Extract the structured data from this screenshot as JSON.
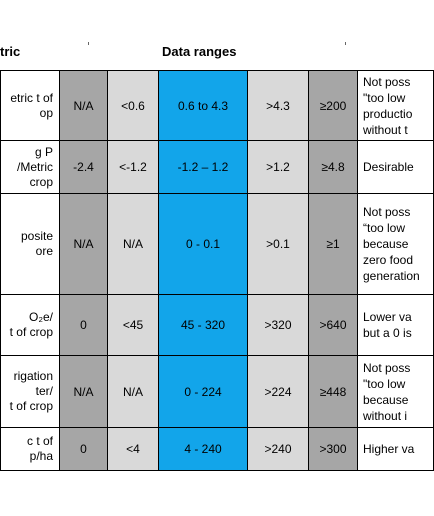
{
  "header": {
    "metric": "tric",
    "ranges": "Data ranges"
  },
  "rows": [
    {
      "metric": [
        "etric t of",
        "op"
      ],
      "values": [
        "N/A",
        "<0.6",
        "0.6 to 4.3",
        ">4.3",
        "≥200"
      ],
      "note": [
        "Not poss",
        "\"too low",
        "productio",
        "without t"
      ]
    },
    {
      "metric": [
        "g P",
        "/Metric",
        "crop"
      ],
      "values": [
        "-2.4",
        "<-1.2",
        "-1.2 – 1.2",
        ">1.2",
        "≥4.8"
      ],
      "note": [
        "Desirable"
      ]
    },
    {
      "metric": [
        "posite",
        "ore"
      ],
      "values": [
        "N/A",
        "N/A",
        "0 - 0.1",
        ">0.1",
        "≥1"
      ],
      "note": [
        "Not poss",
        "“too low",
        "because",
        "zero food",
        "generation"
      ]
    },
    {
      "metric": [
        "O₂e/",
        "t of crop"
      ],
      "values": [
        "0",
        "<45",
        "45 - 320",
        ">320",
        ">640"
      ],
      "note": [
        "Lower va",
        "but a 0 is"
      ]
    },
    {
      "metric": [
        "rigation",
        "ter/",
        "t of crop"
      ],
      "values": [
        "N/A",
        "N/A",
        "0 - 224",
        ">224",
        "≥448"
      ],
      "note": [
        "Not poss",
        "\"too low",
        "because",
        "without i"
      ]
    },
    {
      "metric": [
        "c t of",
        "p/ha"
      ],
      "values": [
        "0",
        "<4",
        "4 - 240",
        ">240",
        ">300"
      ],
      "note": [
        "Higher va"
      ]
    }
  ],
  "colors": {
    "dark_gray": "#a6a6a6",
    "light_gray": "#d9d9d9",
    "accent_blue": "#12a5ea",
    "border": "#000000"
  }
}
